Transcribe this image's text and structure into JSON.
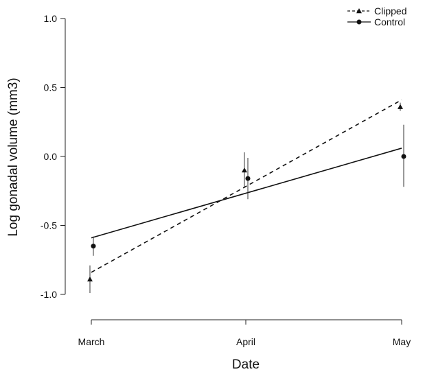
{
  "chart_data": {
    "type": "line",
    "xlabel": "Date",
    "ylabel": "Log gonadal volume (mm3)",
    "x_categories": [
      "March",
      "April",
      "May"
    ],
    "ylim": [
      -1.0,
      1.0
    ],
    "y_ticks": [
      "1.0",
      "0.5",
      "0.0",
      "-0.5",
      "-1.0"
    ],
    "legend_position": "top-right",
    "series": [
      {
        "name": "Clipped",
        "marker": "triangle",
        "line_style": "dashed",
        "points": [
          {
            "x": "March",
            "y": -0.89,
            "err_low": -0.99,
            "err_high": -0.79
          },
          {
            "x": "April",
            "y": -0.1,
            "err_low": -0.22,
            "err_high": 0.03
          },
          {
            "x": "May",
            "y": 0.36,
            "err_low": 0.33,
            "err_high": 0.39
          }
        ],
        "fit_line": [
          {
            "x": "March",
            "y": -0.84
          },
          {
            "x": "May",
            "y": 0.41
          }
        ]
      },
      {
        "name": "Control",
        "marker": "circle",
        "line_style": "solid",
        "points": [
          {
            "x": "March",
            "y": -0.65,
            "err_low": -0.72,
            "err_high": -0.58
          },
          {
            "x": "April",
            "y": -0.16,
            "err_low": -0.31,
            "err_high": -0.01
          },
          {
            "x": "May",
            "y": 0.0,
            "err_low": -0.22,
            "err_high": 0.23
          }
        ],
        "fit_line": [
          {
            "x": "March",
            "y": -0.59
          },
          {
            "x": "May",
            "y": 0.06
          }
        ]
      }
    ]
  }
}
